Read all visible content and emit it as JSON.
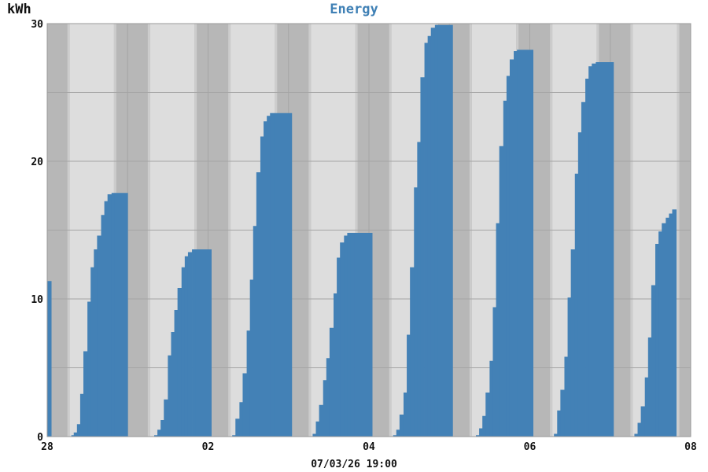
{
  "chart_data": {
    "type": "bar",
    "title": "Energy",
    "ylabel": "kWh",
    "footer": "07/03/26 19:00",
    "ylim": [
      0,
      30
    ],
    "y_ticks": [
      0,
      10,
      20,
      30
    ],
    "x_range": [
      0,
      8
    ],
    "x_ticks": [
      {
        "x": 0,
        "label": "28"
      },
      {
        "x": 2,
        "label": "02"
      },
      {
        "x": 4,
        "label": "04"
      },
      {
        "x": 6,
        "label": "06"
      },
      {
        "x": 8,
        "label": "08"
      }
    ],
    "grid": true,
    "colors": {
      "bar": "#4381b6",
      "night_band": "#b7b7b7",
      "day_band": "#dddddd",
      "twilight_band": "#cccccc",
      "grid": "#a5a5a5",
      "title": "#3f80b5"
    },
    "day_bands": [
      {
        "start": 0.28,
        "end": 0.83
      },
      {
        "start": 1.28,
        "end": 1.83
      },
      {
        "start": 2.28,
        "end": 2.83
      },
      {
        "start": 3.28,
        "end": 3.83
      },
      {
        "start": 4.28,
        "end": 4.83
      },
      {
        "start": 5.28,
        "end": 5.83
      },
      {
        "start": 6.28,
        "end": 6.83
      },
      {
        "start": 7.28,
        "end": 7.83
      }
    ],
    "series": [
      {
        "values": [
          [
            0,
            11.3
          ],
          [
            0.05,
            0
          ],
          [
            0.3,
            0.1
          ],
          [
            0.33,
            0.3
          ],
          [
            0.37,
            0.9
          ],
          [
            0.41,
            3.1
          ],
          [
            0.45,
            6.2
          ],
          [
            0.5,
            9.8
          ],
          [
            0.54,
            12.3
          ],
          [
            0.58,
            13.6
          ],
          [
            0.62,
            14.6
          ],
          [
            0.67,
            16.1
          ],
          [
            0.71,
            17.1
          ],
          [
            0.75,
            17.6
          ],
          [
            0.8,
            17.7
          ],
          [
            0.84,
            17.7
          ],
          [
            1.0,
            0
          ],
          [
            1.33,
            0.1
          ],
          [
            1.37,
            0.5
          ],
          [
            1.41,
            1.2
          ],
          [
            1.45,
            2.7
          ],
          [
            1.5,
            5.9
          ],
          [
            1.54,
            7.6
          ],
          [
            1.58,
            9.2
          ],
          [
            1.62,
            10.8
          ],
          [
            1.67,
            12.3
          ],
          [
            1.71,
            13.1
          ],
          [
            1.75,
            13.4
          ],
          [
            1.8,
            13.6
          ],
          [
            1.84,
            13.6
          ],
          [
            2.04,
            0
          ],
          [
            2.3,
            0.1
          ],
          [
            2.34,
            1.3
          ],
          [
            2.39,
            2.5
          ],
          [
            2.43,
            4.6
          ],
          [
            2.48,
            7.7
          ],
          [
            2.52,
            11.4
          ],
          [
            2.56,
            15.3
          ],
          [
            2.6,
            19.2
          ],
          [
            2.65,
            21.8
          ],
          [
            2.69,
            22.9
          ],
          [
            2.73,
            23.3
          ],
          [
            2.77,
            23.5
          ],
          [
            2.82,
            23.5
          ],
          [
            3.04,
            0
          ],
          [
            3.3,
            0.2
          ],
          [
            3.34,
            1.1
          ],
          [
            3.38,
            2.3
          ],
          [
            3.43,
            4.1
          ],
          [
            3.47,
            5.7
          ],
          [
            3.51,
            7.9
          ],
          [
            3.56,
            10.4
          ],
          [
            3.6,
            13.0
          ],
          [
            3.64,
            14.1
          ],
          [
            3.69,
            14.6
          ],
          [
            3.73,
            14.8
          ],
          [
            3.77,
            14.8
          ],
          [
            3.82,
            14.8
          ],
          [
            4.04,
            0
          ],
          [
            4.3,
            0.1
          ],
          [
            4.34,
            0.5
          ],
          [
            4.38,
            1.6
          ],
          [
            4.43,
            3.2
          ],
          [
            4.47,
            7.4
          ],
          [
            4.51,
            12.3
          ],
          [
            4.56,
            18.1
          ],
          [
            4.6,
            21.4
          ],
          [
            4.64,
            26.1
          ],
          [
            4.69,
            28.6
          ],
          [
            4.73,
            29.1
          ],
          [
            4.77,
            29.7
          ],
          [
            4.82,
            29.9
          ],
          [
            4.86,
            29.9
          ],
          [
            5.04,
            0
          ],
          [
            5.33,
            0.1
          ],
          [
            5.37,
            0.6
          ],
          [
            5.41,
            1.5
          ],
          [
            5.45,
            3.2
          ],
          [
            5.5,
            5.5
          ],
          [
            5.54,
            9.4
          ],
          [
            5.58,
            15.5
          ],
          [
            5.62,
            21.1
          ],
          [
            5.67,
            24.4
          ],
          [
            5.71,
            26.2
          ],
          [
            5.75,
            27.4
          ],
          [
            5.8,
            28.0
          ],
          [
            5.84,
            28.1
          ],
          [
            6.04,
            0
          ],
          [
            6.3,
            0.2
          ],
          [
            6.34,
            1.9
          ],
          [
            6.38,
            3.4
          ],
          [
            6.43,
            5.8
          ],
          [
            6.47,
            10.1
          ],
          [
            6.51,
            13.6
          ],
          [
            6.56,
            19.1
          ],
          [
            6.6,
            22.1
          ],
          [
            6.64,
            24.3
          ],
          [
            6.69,
            26.0
          ],
          [
            6.73,
            26.9
          ],
          [
            6.77,
            27.1
          ],
          [
            6.82,
            27.2
          ],
          [
            6.86,
            27.2
          ],
          [
            7.04,
            0
          ],
          [
            7.3,
            0.2
          ],
          [
            7.34,
            1.0
          ],
          [
            7.38,
            2.2
          ],
          [
            7.43,
            4.3
          ],
          [
            7.47,
            7.2
          ],
          [
            7.51,
            11.0
          ],
          [
            7.56,
            14.0
          ],
          [
            7.6,
            14.9
          ],
          [
            7.64,
            15.5
          ],
          [
            7.69,
            15.9
          ],
          [
            7.73,
            16.2
          ],
          [
            7.77,
            16.5
          ],
          [
            7.82,
            0
          ]
        ]
      }
    ]
  }
}
